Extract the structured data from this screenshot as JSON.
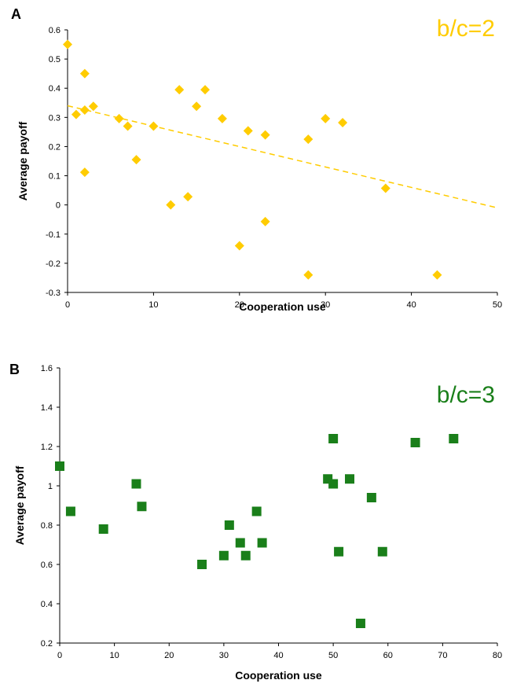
{
  "chart_data": [
    {
      "type": "scatter",
      "panel_label": "A",
      "annotation": "b/c=2",
      "color": "#FFCC00",
      "marker": "diamond",
      "xlabel": "Cooperation use",
      "ylabel": "Average payoff",
      "xlim": [
        0,
        50
      ],
      "ylim": [
        -0.3,
        0.6
      ],
      "xticks": [
        "0",
        "10",
        "20",
        "30",
        "40",
        "50"
      ],
      "yticks": [
        "-0.3",
        "-0.2",
        "-0.1",
        "0",
        "0.1",
        "0.2",
        "0.3",
        "0.4",
        "0.5",
        "0.6"
      ],
      "grid": false,
      "trendline": {
        "style": "dashed",
        "x": [
          0,
          50
        ],
        "y": [
          0.34,
          -0.01
        ]
      },
      "points": [
        {
          "x": 0,
          "y": 0.55
        },
        {
          "x": 1,
          "y": 0.31
        },
        {
          "x": 2,
          "y": 0.45
        },
        {
          "x": 2,
          "y": 0.325
        },
        {
          "x": 2,
          "y": 0.112
        },
        {
          "x": 3,
          "y": 0.338
        },
        {
          "x": 6,
          "y": 0.296
        },
        {
          "x": 7,
          "y": 0.27
        },
        {
          "x": 8,
          "y": 0.155
        },
        {
          "x": 10,
          "y": 0.27
        },
        {
          "x": 12,
          "y": 0.0
        },
        {
          "x": 13,
          "y": 0.395
        },
        {
          "x": 14,
          "y": 0.028
        },
        {
          "x": 15,
          "y": 0.338
        },
        {
          "x": 16,
          "y": 0.395
        },
        {
          "x": 18,
          "y": 0.296
        },
        {
          "x": 20,
          "y": -0.14
        },
        {
          "x": 21,
          "y": 0.254
        },
        {
          "x": 23,
          "y": 0.24
        },
        {
          "x": 23,
          "y": -0.057
        },
        {
          "x": 28,
          "y": 0.225
        },
        {
          "x": 28,
          "y": -0.24
        },
        {
          "x": 30,
          "y": 0.296
        },
        {
          "x": 32,
          "y": 0.282
        },
        {
          "x": 37,
          "y": 0.057
        },
        {
          "x": 43,
          "y": -0.24
        }
      ]
    },
    {
      "type": "scatter",
      "panel_label": "B",
      "annotation": "b/c=3",
      "color": "#1A7F1A",
      "marker": "square",
      "xlabel": "Cooperation use",
      "ylabel": "Average payoff",
      "xlim": [
        0,
        80
      ],
      "ylim": [
        0.2,
        1.6
      ],
      "xticks": [
        "0",
        "10",
        "20",
        "30",
        "40",
        "50",
        "60",
        "70",
        "80"
      ],
      "yticks": [
        "0.2",
        "0.4",
        "0.6",
        "0.8",
        "1",
        "1.2",
        "1.4",
        "1.6"
      ],
      "grid": false,
      "points": [
        {
          "x": 0,
          "y": 1.1
        },
        {
          "x": 2,
          "y": 0.87
        },
        {
          "x": 8,
          "y": 0.78
        },
        {
          "x": 14,
          "y": 1.01
        },
        {
          "x": 15,
          "y": 0.895
        },
        {
          "x": 26,
          "y": 0.6
        },
        {
          "x": 30,
          "y": 0.645
        },
        {
          "x": 31,
          "y": 0.8
        },
        {
          "x": 33,
          "y": 0.71
        },
        {
          "x": 34,
          "y": 0.645
        },
        {
          "x": 36,
          "y": 0.87
        },
        {
          "x": 37,
          "y": 0.71
        },
        {
          "x": 49,
          "y": 1.035
        },
        {
          "x": 50,
          "y": 1.24
        },
        {
          "x": 50,
          "y": 1.01
        },
        {
          "x": 51,
          "y": 0.665
        },
        {
          "x": 53,
          "y": 1.035
        },
        {
          "x": 55,
          "y": 0.3
        },
        {
          "x": 57,
          "y": 0.94
        },
        {
          "x": 59,
          "y": 0.665
        },
        {
          "x": 65,
          "y": 1.22
        },
        {
          "x": 72,
          "y": 1.24
        }
      ]
    }
  ]
}
